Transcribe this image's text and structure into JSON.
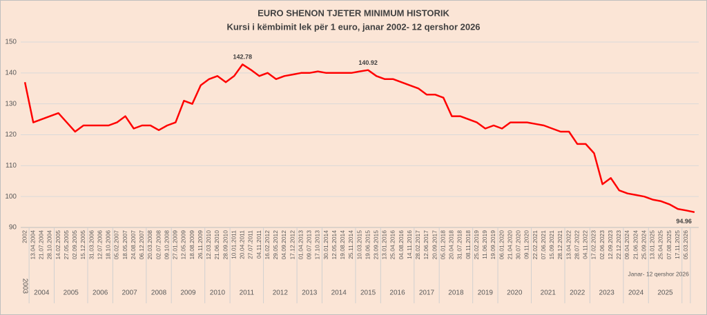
{
  "chart_data": {
    "type": "line",
    "title": "EURO SHENON TJETER MINIMUM HISTORIK",
    "subtitle": "Kursi i këmbimit lek për 1 euro, janar 2002- 12 qershor 2026",
    "categories": [
      "2002",
      "13.04.2004",
      "21.07.2004",
      "28.10.2004",
      "14.02.2005",
      "27.05.2005",
      "02.09.2005",
      "15.12.2005",
      "31.03.2006",
      "12.07.2006",
      "18.10.2006",
      "05.02.2007",
      "18.05.2007",
      "24.08.2007",
      "06.12.2007",
      "20.03.2008",
      "02.07.2008",
      "09.10.2008",
      "27.01.2009",
      "12.05.2009",
      "18.08.2009",
      "26.11.2009",
      "12.03.2010",
      "21.06.2010",
      "28.09.2010",
      "10.01.2011",
      "20.04.2011",
      "27.07.2011",
      "04.11.2011",
      "16.02.2012",
      "29.05.2012",
      "04.09.2012",
      "17.12.2012",
      "01.04.2013",
      "09.07.2013",
      "17.10.2013",
      "30.01.2014",
      "12.05.2014",
      "19.08.2014",
      "25.11.2014",
      "10.03.2015",
      "19.06.2015",
      "23.09.2015",
      "13.01.2016",
      "25.04.2016",
      "04.08.2016",
      "14.11.2016",
      "28.02.2017",
      "12.06.2017",
      "20.09.2017",
      "05.01.2018",
      "20.04.2018",
      "31.07.2018",
      "08.11.2018",
      "25.02.2019",
      "11.06.2019",
      "19.09.2019",
      "06.01.2020",
      "21.04.2020",
      "30.07.2020",
      "09.11.2020",
      "22.02.2021",
      "07.06.2021",
      "15.09.2021",
      "28.12.2021",
      "13.04.2022",
      "28.07.2022",
      "04.11.2022",
      "17.02.2023",
      "02.06.2023",
      "12.09.2023",
      "22.12.2023",
      "09.04.2024",
      "21.06.2024",
      "25.09.2024",
      "13.01.2025",
      "25.04.2025",
      "07.08.2025",
      "17.11.2025",
      "05.03.2026",
      null
    ],
    "series": [
      {
        "color": "#ff0000",
        "values": [
          137,
          124,
          125,
          126,
          127,
          124,
          121,
          123,
          123,
          123,
          123,
          124,
          126,
          122,
          123,
          123,
          121.5,
          123,
          124,
          131,
          130,
          136,
          138,
          139,
          137,
          139,
          142.78,
          141,
          139,
          140,
          138,
          139,
          139.5,
          140,
          140,
          140.5,
          140,
          140,
          140,
          140,
          140.5,
          140.92,
          139,
          138,
          138,
          137,
          136,
          135,
          133,
          133,
          132,
          126,
          126,
          125,
          124,
          122,
          123,
          122,
          124,
          124,
          124,
          123.5,
          123,
          122,
          121,
          121,
          117,
          117,
          114,
          104,
          106,
          102,
          101,
          100.5,
          100,
          99,
          98.5,
          97.5,
          96,
          95.5,
          94.96
        ],
        "value_labels": [
          null,
          null,
          null,
          null,
          null,
          null,
          null,
          null,
          null,
          null,
          null,
          null,
          null,
          null,
          null,
          null,
          null,
          null,
          null,
          null,
          null,
          null,
          null,
          null,
          null,
          null,
          "142.78",
          null,
          null,
          null,
          null,
          null,
          null,
          null,
          null,
          null,
          null,
          null,
          null,
          null,
          null,
          "140.92",
          null,
          null,
          null,
          null,
          null,
          null,
          null,
          null,
          null,
          null,
          null,
          null,
          null,
          null,
          null,
          null,
          null,
          null,
          null,
          null,
          null,
          null,
          null,
          null,
          null,
          null,
          null,
          null,
          null,
          null,
          null,
          null,
          null,
          null,
          null,
          null,
          null,
          null,
          "94.96"
        ]
      }
    ],
    "year_groups": [
      "2003",
      "2004",
      "2005",
      "2006",
      "2007",
      "2008",
      "2009",
      "2010",
      "2011",
      "2012",
      "2013",
      "2014",
      "2015",
      "2016",
      "2017",
      "2018",
      "2019",
      "2020",
      "2021",
      "2022",
      "2023",
      "2024",
      "2025",
      "Janar- 12 qershor 2026"
    ],
    "ylim": [
      90,
      150
    ],
    "yticks": [
      90,
      100,
      110,
      120,
      130,
      140,
      150
    ],
    "grid": true
  }
}
